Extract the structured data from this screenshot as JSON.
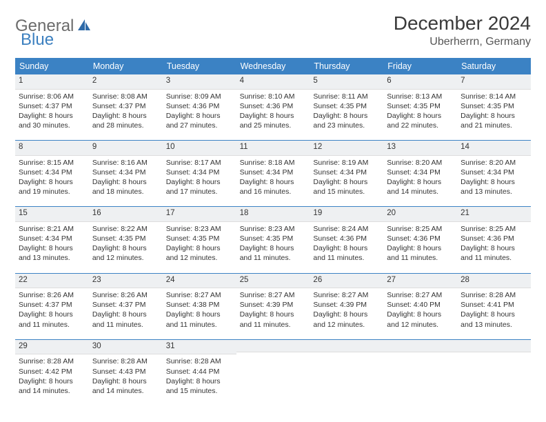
{
  "logo": {
    "word1": "General",
    "word2": "Blue",
    "sail_color": "#2e6aa8"
  },
  "title": "December 2024",
  "location": "Uberherrn, Germany",
  "colors": {
    "header_bg": "#3b82c4",
    "header_text": "#ffffff",
    "daynum_bg": "#eef0f2",
    "rule": "#3b82c4",
    "body_text": "#333333"
  },
  "typography": {
    "title_fontsize": 28,
    "location_fontsize": 16,
    "dayhead_fontsize": 12.5,
    "cell_fontsize": 10.5
  },
  "day_headers": [
    "Sunday",
    "Monday",
    "Tuesday",
    "Wednesday",
    "Thursday",
    "Friday",
    "Saturday"
  ],
  "weeks": [
    [
      {
        "n": "1",
        "sunrise": "Sunrise: 8:06 AM",
        "sunset": "Sunset: 4:37 PM",
        "daylight": "Daylight: 8 hours and 30 minutes."
      },
      {
        "n": "2",
        "sunrise": "Sunrise: 8:08 AM",
        "sunset": "Sunset: 4:37 PM",
        "daylight": "Daylight: 8 hours and 28 minutes."
      },
      {
        "n": "3",
        "sunrise": "Sunrise: 8:09 AM",
        "sunset": "Sunset: 4:36 PM",
        "daylight": "Daylight: 8 hours and 27 minutes."
      },
      {
        "n": "4",
        "sunrise": "Sunrise: 8:10 AM",
        "sunset": "Sunset: 4:36 PM",
        "daylight": "Daylight: 8 hours and 25 minutes."
      },
      {
        "n": "5",
        "sunrise": "Sunrise: 8:11 AM",
        "sunset": "Sunset: 4:35 PM",
        "daylight": "Daylight: 8 hours and 23 minutes."
      },
      {
        "n": "6",
        "sunrise": "Sunrise: 8:13 AM",
        "sunset": "Sunset: 4:35 PM",
        "daylight": "Daylight: 8 hours and 22 minutes."
      },
      {
        "n": "7",
        "sunrise": "Sunrise: 8:14 AM",
        "sunset": "Sunset: 4:35 PM",
        "daylight": "Daylight: 8 hours and 21 minutes."
      }
    ],
    [
      {
        "n": "8",
        "sunrise": "Sunrise: 8:15 AM",
        "sunset": "Sunset: 4:34 PM",
        "daylight": "Daylight: 8 hours and 19 minutes."
      },
      {
        "n": "9",
        "sunrise": "Sunrise: 8:16 AM",
        "sunset": "Sunset: 4:34 PM",
        "daylight": "Daylight: 8 hours and 18 minutes."
      },
      {
        "n": "10",
        "sunrise": "Sunrise: 8:17 AM",
        "sunset": "Sunset: 4:34 PM",
        "daylight": "Daylight: 8 hours and 17 minutes."
      },
      {
        "n": "11",
        "sunrise": "Sunrise: 8:18 AM",
        "sunset": "Sunset: 4:34 PM",
        "daylight": "Daylight: 8 hours and 16 minutes."
      },
      {
        "n": "12",
        "sunrise": "Sunrise: 8:19 AM",
        "sunset": "Sunset: 4:34 PM",
        "daylight": "Daylight: 8 hours and 15 minutes."
      },
      {
        "n": "13",
        "sunrise": "Sunrise: 8:20 AM",
        "sunset": "Sunset: 4:34 PM",
        "daylight": "Daylight: 8 hours and 14 minutes."
      },
      {
        "n": "14",
        "sunrise": "Sunrise: 8:20 AM",
        "sunset": "Sunset: 4:34 PM",
        "daylight": "Daylight: 8 hours and 13 minutes."
      }
    ],
    [
      {
        "n": "15",
        "sunrise": "Sunrise: 8:21 AM",
        "sunset": "Sunset: 4:34 PM",
        "daylight": "Daylight: 8 hours and 13 minutes."
      },
      {
        "n": "16",
        "sunrise": "Sunrise: 8:22 AM",
        "sunset": "Sunset: 4:35 PM",
        "daylight": "Daylight: 8 hours and 12 minutes."
      },
      {
        "n": "17",
        "sunrise": "Sunrise: 8:23 AM",
        "sunset": "Sunset: 4:35 PM",
        "daylight": "Daylight: 8 hours and 12 minutes."
      },
      {
        "n": "18",
        "sunrise": "Sunrise: 8:23 AM",
        "sunset": "Sunset: 4:35 PM",
        "daylight": "Daylight: 8 hours and 11 minutes."
      },
      {
        "n": "19",
        "sunrise": "Sunrise: 8:24 AM",
        "sunset": "Sunset: 4:36 PM",
        "daylight": "Daylight: 8 hours and 11 minutes."
      },
      {
        "n": "20",
        "sunrise": "Sunrise: 8:25 AM",
        "sunset": "Sunset: 4:36 PM",
        "daylight": "Daylight: 8 hours and 11 minutes."
      },
      {
        "n": "21",
        "sunrise": "Sunrise: 8:25 AM",
        "sunset": "Sunset: 4:36 PM",
        "daylight": "Daylight: 8 hours and 11 minutes."
      }
    ],
    [
      {
        "n": "22",
        "sunrise": "Sunrise: 8:26 AM",
        "sunset": "Sunset: 4:37 PM",
        "daylight": "Daylight: 8 hours and 11 minutes."
      },
      {
        "n": "23",
        "sunrise": "Sunrise: 8:26 AM",
        "sunset": "Sunset: 4:37 PM",
        "daylight": "Daylight: 8 hours and 11 minutes."
      },
      {
        "n": "24",
        "sunrise": "Sunrise: 8:27 AM",
        "sunset": "Sunset: 4:38 PM",
        "daylight": "Daylight: 8 hours and 11 minutes."
      },
      {
        "n": "25",
        "sunrise": "Sunrise: 8:27 AM",
        "sunset": "Sunset: 4:39 PM",
        "daylight": "Daylight: 8 hours and 11 minutes."
      },
      {
        "n": "26",
        "sunrise": "Sunrise: 8:27 AM",
        "sunset": "Sunset: 4:39 PM",
        "daylight": "Daylight: 8 hours and 12 minutes."
      },
      {
        "n": "27",
        "sunrise": "Sunrise: 8:27 AM",
        "sunset": "Sunset: 4:40 PM",
        "daylight": "Daylight: 8 hours and 12 minutes."
      },
      {
        "n": "28",
        "sunrise": "Sunrise: 8:28 AM",
        "sunset": "Sunset: 4:41 PM",
        "daylight": "Daylight: 8 hours and 13 minutes."
      }
    ],
    [
      {
        "n": "29",
        "sunrise": "Sunrise: 8:28 AM",
        "sunset": "Sunset: 4:42 PM",
        "daylight": "Daylight: 8 hours and 14 minutes."
      },
      {
        "n": "30",
        "sunrise": "Sunrise: 8:28 AM",
        "sunset": "Sunset: 4:43 PM",
        "daylight": "Daylight: 8 hours and 14 minutes."
      },
      {
        "n": "31",
        "sunrise": "Sunrise: 8:28 AM",
        "sunset": "Sunset: 4:44 PM",
        "daylight": "Daylight: 8 hours and 15 minutes."
      },
      null,
      null,
      null,
      null
    ]
  ]
}
